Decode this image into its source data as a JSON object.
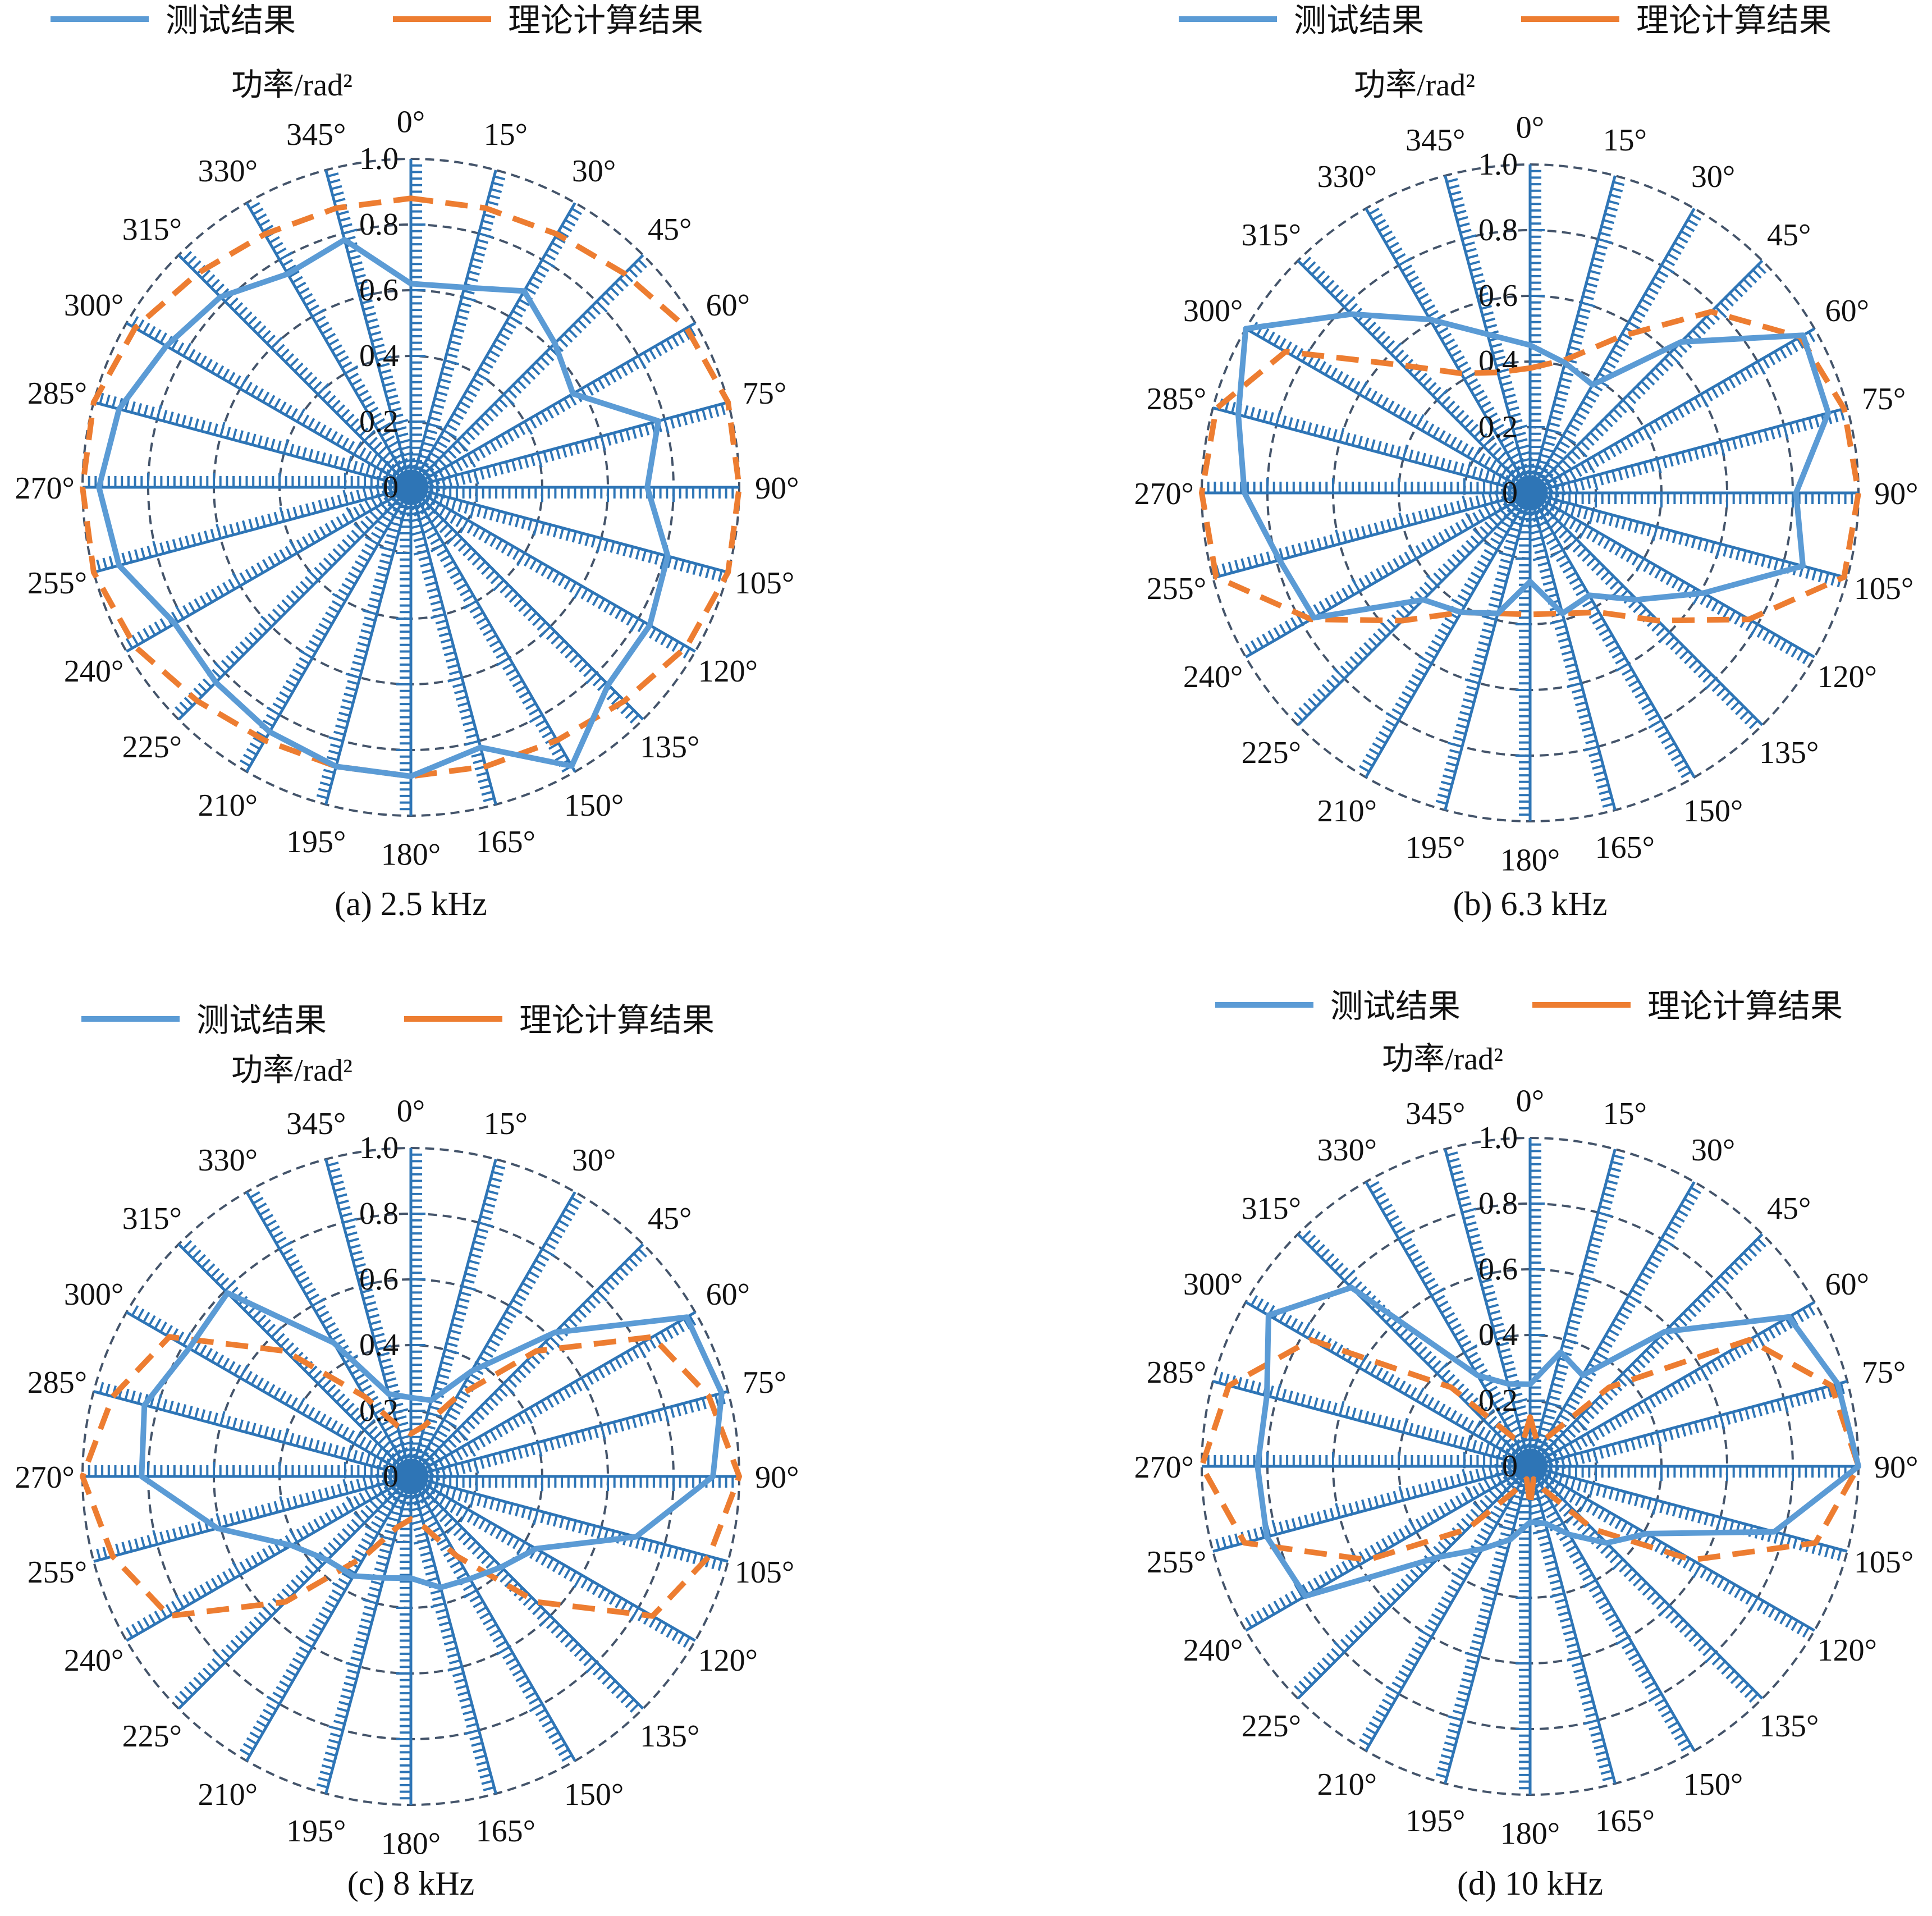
{
  "legend": {
    "measured_label": "测试结果",
    "theory_label": "理论计算结果",
    "measured_color": "#5b9bd5",
    "theory_color": "#ed7d31"
  },
  "colors": {
    "spoke": "#2e75b6",
    "ring": "#44546a",
    "text": "#111111"
  },
  "chart_data": [
    {
      "type": "radar",
      "caption": "(a) 2.5 kHz",
      "axis_title": "功率/rad²",
      "radial_ticks": [
        "0",
        "0.2",
        "0.4",
        "0.6",
        "0.8",
        "1.0"
      ],
      "rlim": [
        0,
        1.0
      ],
      "angle_labels": [
        "0°",
        "15°",
        "30°",
        "45°",
        "60°",
        "75°",
        "90°",
        "105°",
        "120°",
        "135°",
        "150°",
        "165°",
        "180°",
        "195°",
        "210°",
        "225°",
        "240°",
        "255°",
        "270°",
        "285°",
        "300°",
        "315°",
        "330°",
        "345°"
      ],
      "angles": [
        0,
        15,
        30,
        45,
        60,
        75,
        90,
        105,
        120,
        135,
        150,
        165,
        180,
        195,
        210,
        225,
        240,
        255,
        270,
        285,
        300,
        315,
        330,
        345
      ],
      "series": [
        {
          "name": "测试结果",
          "style": "solid",
          "values": [
            0.62,
            0.63,
            0.69,
            0.62,
            0.57,
            0.78,
            0.72,
            0.81,
            0.84,
            0.85,
            0.98,
            0.82,
            0.88,
            0.88,
            0.86,
            0.84,
            0.83,
            0.92,
            0.95,
            0.92,
            0.86,
            0.82,
            0.75,
            0.78
          ]
        },
        {
          "name": "理论计算结果",
          "style": "dashed",
          "values": [
            0.88,
            0.88,
            0.89,
            0.92,
            0.97,
            1.0,
            1.0,
            1.0,
            0.97,
            0.92,
            0.89,
            0.88,
            0.88,
            0.88,
            0.89,
            0.92,
            0.97,
            1.0,
            1.0,
            1.0,
            0.97,
            0.92,
            0.89,
            0.88
          ]
        }
      ]
    },
    {
      "type": "radar",
      "caption": "(b) 6.3 kHz",
      "axis_title": "功率/rad²",
      "radial_ticks": [
        "0",
        "0.2",
        "0.4",
        "0.6",
        "0.8",
        "1.0"
      ],
      "rlim": [
        0,
        1.0
      ],
      "angle_labels": [
        "0°",
        "15°",
        "30°",
        "45°",
        "60°",
        "75°",
        "90°",
        "105°",
        "120°",
        "135°",
        "150°",
        "165°",
        "180°",
        "195°",
        "210°",
        "225°",
        "240°",
        "255°",
        "270°",
        "285°",
        "300°",
        "315°",
        "330°",
        "345°"
      ],
      "angles": [
        0,
        15,
        30,
        45,
        60,
        75,
        90,
        105,
        120,
        135,
        150,
        165,
        180,
        195,
        210,
        225,
        240,
        255,
        270,
        285,
        300,
        315,
        330,
        345
      ],
      "series": [
        {
          "name": "测试结果",
          "style": "solid",
          "values": [
            0.45,
            0.41,
            0.38,
            0.65,
            0.96,
            0.94,
            0.81,
            0.86,
            0.61,
            0.46,
            0.36,
            0.38,
            0.27,
            0.38,
            0.42,
            0.46,
            0.76,
            0.79,
            0.87,
            0.92,
            1.0,
            0.77,
            0.61,
            0.5
          ]
        },
        {
          "name": "理论计算结果",
          "style": "dashed",
          "values": [
            0.38,
            0.42,
            0.55,
            0.78,
            0.95,
            0.99,
            1.0,
            0.99,
            0.77,
            0.55,
            0.42,
            0.38,
            0.37,
            0.38,
            0.42,
            0.55,
            0.77,
            0.99,
            1.0,
            0.99,
            0.86,
            0.55,
            0.42,
            0.38
          ]
        }
      ]
    },
    {
      "type": "radar",
      "caption": "(c) 8 kHz",
      "axis_title": "功率/rad²",
      "radial_ticks": [
        "0",
        "0.2",
        "0.4",
        "0.6",
        "0.8",
        "1.0"
      ],
      "rlim": [
        0,
        1.0
      ],
      "angle_labels": [
        "0°",
        "15°",
        "30°",
        "45°",
        "60°",
        "75°",
        "90°",
        "105°",
        "120°",
        "135°",
        "150°",
        "165°",
        "180°",
        "195°",
        "210°",
        "225°",
        "240°",
        "255°",
        "270°",
        "285°",
        "300°",
        "315°",
        "330°",
        "345°"
      ],
      "angles": [
        0,
        15,
        30,
        45,
        60,
        75,
        90,
        105,
        120,
        135,
        150,
        165,
        180,
        195,
        210,
        225,
        240,
        255,
        270,
        285,
        300,
        315,
        330,
        345
      ],
      "series": [
        {
          "name": "测试结果",
          "style": "solid",
          "values": [
            0.24,
            0.24,
            0.37,
            0.62,
            0.97,
            0.98,
            0.92,
            0.71,
            0.44,
            0.39,
            0.36,
            0.35,
            0.31,
            0.32,
            0.35,
            0.36,
            0.42,
            0.61,
            0.82,
            0.84,
            0.78,
            0.79,
            0.47,
            0.26
          ]
        },
        {
          "name": "理论计算结果",
          "style": "dashed",
          "values": [
            0.13,
            0.16,
            0.28,
            0.54,
            0.85,
            0.94,
            1.0,
            0.94,
            0.85,
            0.54,
            0.28,
            0.16,
            0.13,
            0.16,
            0.28,
            0.54,
            0.85,
            0.94,
            1.0,
            0.94,
            0.85,
            0.54,
            0.28,
            0.16
          ]
        }
      ]
    },
    {
      "type": "radar",
      "caption": "(d) 10 kHz",
      "axis_title": "功率/rad²",
      "radial_ticks": [
        "0",
        "0.2",
        "0.4",
        "0.6",
        "0.8",
        "1.0"
      ],
      "rlim": [
        0,
        1.0
      ],
      "angle_labels": [
        "0°",
        "15°",
        "30°",
        "45°",
        "60°",
        "75°",
        "90°",
        "105°",
        "120°",
        "135°",
        "150°",
        "165°",
        "180°",
        "195°",
        "210°",
        "225°",
        "240°",
        "255°",
        "270°",
        "285°",
        "300°",
        "315°",
        "330°",
        "345°"
      ],
      "angles": [
        0,
        15,
        30,
        45,
        60,
        75,
        90,
        105,
        120,
        135,
        150,
        165,
        180,
        195,
        210,
        225,
        240,
        255,
        270,
        285,
        300,
        315,
        330,
        345
      ],
      "series": [
        {
          "name": "测试结果",
          "style": "solid",
          "values": [
            0.25,
            0.36,
            0.32,
            0.58,
            0.91,
            0.97,
            1.0,
            0.77,
            0.41,
            0.33,
            0.24,
            0.18,
            0.17,
            0.23,
            0.29,
            0.39,
            0.79,
            0.83,
            0.83,
            0.83,
            0.92,
            0.77,
            0.32,
            0.26
          ]
        },
        {
          "name": "理论计算结果",
          "style": "dashed",
          "values": [
            0.15,
            0.08,
            0.1,
            0.34,
            0.77,
            0.95,
            1.0,
            0.9,
            0.57,
            0.27,
            0.08,
            0.04,
            0.12,
            0.04,
            0.08,
            0.27,
            0.57,
            0.9,
            1.0,
            0.95,
            0.77,
            0.34,
            0.1,
            0.08
          ]
        }
      ]
    }
  ]
}
